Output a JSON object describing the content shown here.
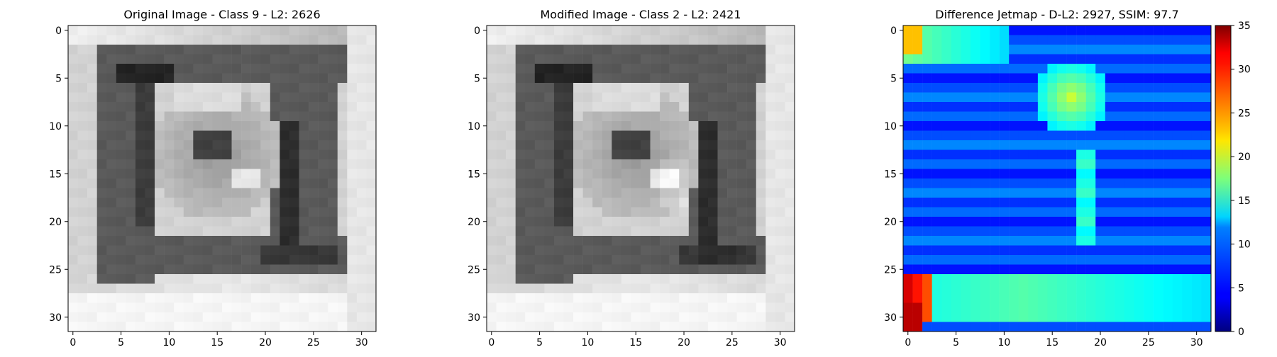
{
  "panels": [
    {
      "id": "original",
      "title": "Original Image - Class 9 - L2: 2626",
      "title_color": "#000000",
      "colormap": "gray",
      "vmin": 0,
      "vmax": 255,
      "xticks": [
        0,
        5,
        10,
        15,
        20,
        25,
        30
      ],
      "yticks": [
        0,
        5,
        10,
        15,
        20,
        25,
        30
      ]
    },
    {
      "id": "modified",
      "title": "Modified Image - Class 2 - L2: 2421",
      "title_color": "#ff0000",
      "colormap": "gray",
      "vmin": 0,
      "vmax": 255,
      "xticks": [
        0,
        5,
        10,
        15,
        20,
        25,
        30
      ],
      "yticks": [
        0,
        5,
        10,
        15,
        20,
        25,
        30
      ]
    },
    {
      "id": "difference",
      "title": "Difference Jetmap - D-L2: 2927, SSIM: 97.7",
      "title_color": "#000000",
      "colormap": "jet",
      "vmin": 0,
      "vmax": 35,
      "xticks": [
        0,
        5,
        10,
        15,
        20,
        25,
        30
      ],
      "yticks": [
        0,
        5,
        10,
        15,
        20,
        25,
        30
      ]
    }
  ],
  "colorbar": {
    "colormap": "jet",
    "ticks": [
      0,
      5,
      10,
      15,
      20,
      25,
      30,
      35
    ]
  },
  "chart_data": [
    {
      "type": "heatmap",
      "title": "Original Image - Class 9 - L2: 2626",
      "grid_size": [
        32,
        32
      ],
      "xlim": [
        -0.5,
        31.5
      ],
      "ylim": [
        31.5,
        -0.5
      ],
      "value_range": [
        0,
        255
      ],
      "description_values": "approximate grayscale 32x32 image; dark square frame with central face-like blob"
    },
    {
      "type": "heatmap",
      "title": "Modified Image - Class 2 - L2: 2421",
      "grid_size": [
        32,
        32
      ],
      "xlim": [
        -0.5,
        31.5
      ],
      "ylim": [
        31.5,
        -0.5
      ],
      "value_range": [
        0,
        255
      ]
    },
    {
      "type": "heatmap",
      "title": "Difference Jetmap - D-L2: 2927, SSIM: 97.7",
      "grid_size": [
        32,
        32
      ],
      "xlim": [
        -0.5,
        31.5
      ],
      "ylim": [
        31.5,
        -0.5
      ],
      "value_range": [
        0,
        35
      ]
    }
  ]
}
